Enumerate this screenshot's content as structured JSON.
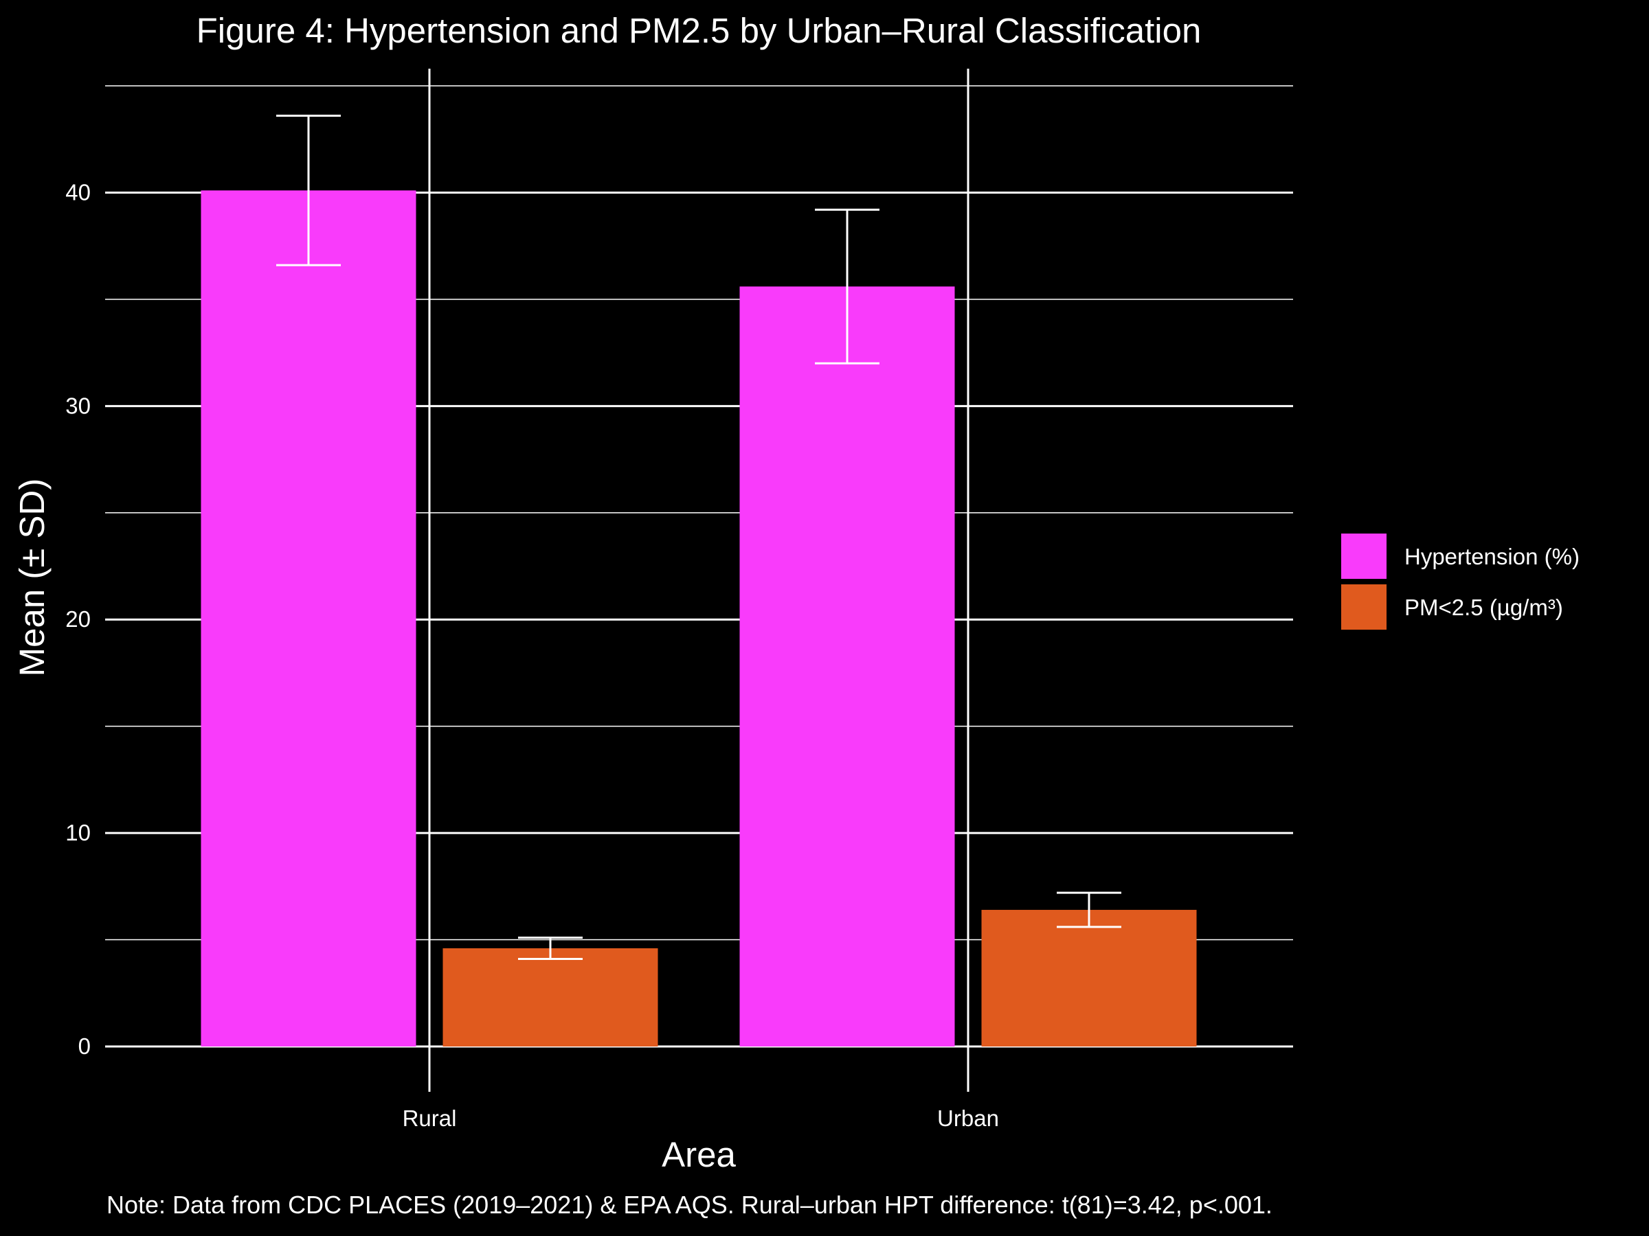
{
  "chart_data": {
    "type": "bar",
    "title": "Figure 4: Hypertension and PM2.5 by Urban–Rural Classification",
    "xlabel": "Area",
    "ylabel": "Mean (± SD)",
    "categories": [
      "Rural",
      "Urban"
    ],
    "series": [
      {
        "name": "Hypertension (%)",
        "color": "#f93bfb",
        "values": [
          40.1,
          35.6
        ],
        "error_low": [
          36.6,
          32.0
        ],
        "error_high": [
          43.6,
          39.2
        ]
      },
      {
        "name": "PM<2.5 (µg/m³)",
        "color": "#e05a1e",
        "values": [
          4.6,
          6.4
        ],
        "error_low": [
          4.1,
          5.6
        ],
        "error_high": [
          5.1,
          7.2
        ]
      }
    ],
    "ylim": [
      0,
      45
    ],
    "yticks": [
      0,
      10,
      20,
      30,
      40
    ],
    "ytick_labels": [
      "0",
      "10",
      "20",
      "30",
      "40"
    ],
    "grid": true,
    "legend_position": "right",
    "note": "Note: Data from CDC PLACES (2019–2021) & EPA AQS. Rural–urban HPT difference: t(81)=3.42, p<.001."
  }
}
